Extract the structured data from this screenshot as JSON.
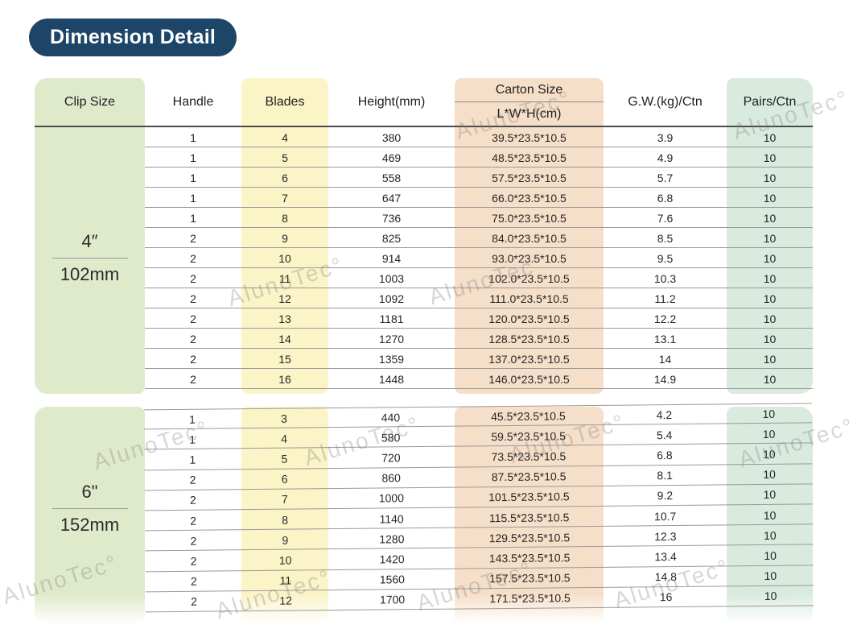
{
  "badge": "Dimension Detail",
  "watermark": "AlunoTec°",
  "colors": {
    "badge_bg": "#1c4568",
    "clip_band": "#dfeacb",
    "blades_band": "#faf4c6",
    "carton_band": "#f6dfc9",
    "pairs_band": "#d8ebde"
  },
  "table": {
    "headers": {
      "clip_size": "Clip Size",
      "handle": "Handle",
      "blades": "Blades",
      "height": "Height(mm)",
      "carton_size": "Carton Size",
      "carton_sub": "L*W*H(cm)",
      "gw": "G.W.(kg)/Ctn",
      "pairs": "Pairs/Ctn"
    },
    "sections": [
      {
        "clip_inch": "4″",
        "clip_mm": "102mm",
        "rows": [
          [
            "1",
            "4",
            "380",
            "39.5*23.5*10.5",
            "3.9",
            "10"
          ],
          [
            "1",
            "5",
            "469",
            "48.5*23.5*10.5",
            "4.9",
            "10"
          ],
          [
            "1",
            "6",
            "558",
            "57.5*23.5*10.5",
            "5.7",
            "10"
          ],
          [
            "1",
            "7",
            "647",
            "66.0*23.5*10.5",
            "6.8",
            "10"
          ],
          [
            "1",
            "8",
            "736",
            "75.0*23.5*10.5",
            "7.6",
            "10"
          ],
          [
            "2",
            "9",
            "825",
            "84.0*23.5*10.5",
            "8.5",
            "10"
          ],
          [
            "2",
            "10",
            "914",
            "93.0*23.5*10.5",
            "9.5",
            "10"
          ],
          [
            "2",
            "11",
            "1003",
            "102.0*23.5*10.5",
            "10.3",
            "10"
          ],
          [
            "2",
            "12",
            "1092",
            "111.0*23.5*10.5",
            "11.2",
            "10"
          ],
          [
            "2",
            "13",
            "1181",
            "120.0*23.5*10.5",
            "12.2",
            "10"
          ],
          [
            "2",
            "14",
            "1270",
            "128.5*23.5*10.5",
            "13.1",
            "10"
          ],
          [
            "2",
            "15",
            "1359",
            "137.0*23.5*10.5",
            "14",
            "10"
          ],
          [
            "2",
            "16",
            "1448",
            "146.0*23.5*10.5",
            "14.9",
            "10"
          ]
        ]
      },
      {
        "clip_inch": "6\"",
        "clip_mm": "152mm",
        "rows": [
          [
            "1",
            "3",
            "440",
            "45.5*23.5*10.5",
            "4.2",
            "10"
          ],
          [
            "1",
            "4",
            "580",
            "59.5*23.5*10.5",
            "5.4",
            "10"
          ],
          [
            "1",
            "5",
            "720",
            "73.5*23.5*10.5",
            "6.8",
            "10"
          ],
          [
            "2",
            "6",
            "860",
            "87.5*23.5*10.5",
            "8.1",
            "10"
          ],
          [
            "2",
            "7",
            "1000",
            "101.5*23.5*10.5",
            "9.2",
            "10"
          ],
          [
            "2",
            "8",
            "1140",
            "115.5*23.5*10.5",
            "10.7",
            "10"
          ],
          [
            "2",
            "9",
            "1280",
            "129.5*23.5*10.5",
            "12.3",
            "10"
          ],
          [
            "2",
            "10",
            "1420",
            "143.5*23.5*10.5",
            "13.4",
            "10"
          ],
          [
            "2",
            "11",
            "1560",
            "157.5*23.5*10.5",
            "14.8",
            "10"
          ],
          [
            "2",
            "12",
            "1700",
            "171.5*23.5*10.5",
            "16",
            "10"
          ]
        ]
      }
    ]
  }
}
